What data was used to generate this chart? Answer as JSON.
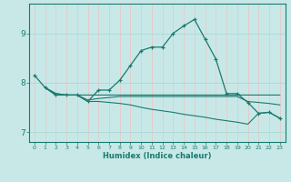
{
  "xlabel": "Humidex (Indice chaleur)",
  "background_color": "#c8e8e8",
  "grid_color_v": "#e8c8c8",
  "grid_color_h": "#a8d8d8",
  "line_color": "#1a7a6e",
  "xlim": [
    -0.5,
    23.5
  ],
  "ylim": [
    6.8,
    9.6
  ],
  "yticks": [
    7,
    8,
    9
  ],
  "xticks": [
    0,
    1,
    2,
    3,
    4,
    5,
    6,
    7,
    8,
    9,
    10,
    11,
    12,
    13,
    14,
    15,
    16,
    17,
    18,
    19,
    20,
    21,
    22,
    23
  ],
  "series1_x": [
    0,
    1,
    2,
    3,
    4,
    5,
    6,
    7,
    8,
    9,
    10,
    11,
    12,
    13,
    14,
    15,
    16,
    17,
    18,
    19,
    20,
    21,
    22,
    23
  ],
  "series1_y": [
    8.15,
    7.9,
    7.75,
    7.75,
    7.75,
    7.62,
    7.85,
    7.85,
    8.05,
    8.35,
    8.65,
    8.72,
    8.72,
    9.0,
    9.15,
    9.28,
    8.88,
    8.48,
    7.78,
    7.78,
    7.6,
    7.38,
    7.4,
    7.28
  ],
  "series2_x": [
    1,
    2,
    3,
    4,
    5,
    6,
    7,
    8,
    9,
    10,
    11,
    12,
    13,
    14,
    15,
    16,
    17,
    18,
    19,
    20,
    21,
    22,
    23
  ],
  "series2_y": [
    7.9,
    7.75,
    7.75,
    7.75,
    7.75,
    7.75,
    7.75,
    7.75,
    7.75,
    7.75,
    7.75,
    7.75,
    7.75,
    7.75,
    7.75,
    7.75,
    7.75,
    7.75,
    7.75,
    7.75,
    7.75,
    7.75,
    7.75
  ],
  "series3_x": [
    1,
    2,
    3,
    4,
    5,
    6,
    7,
    8,
    9,
    10,
    11,
    12,
    13,
    14,
    15,
    16,
    17,
    18,
    19,
    20,
    21,
    22,
    23
  ],
  "series3_y": [
    7.9,
    7.78,
    7.75,
    7.75,
    7.65,
    7.68,
    7.7,
    7.72,
    7.72,
    7.72,
    7.72,
    7.72,
    7.72,
    7.72,
    7.72,
    7.72,
    7.72,
    7.72,
    7.72,
    7.62,
    7.6,
    7.58,
    7.55
  ],
  "series4_x": [
    1,
    2,
    3,
    4,
    5,
    6,
    7,
    8,
    9,
    10,
    11,
    12,
    13,
    14,
    15,
    16,
    17,
    18,
    19,
    20,
    21,
    22,
    23
  ],
  "series4_y": [
    7.9,
    7.78,
    7.75,
    7.75,
    7.62,
    7.62,
    7.6,
    7.58,
    7.55,
    7.5,
    7.46,
    7.43,
    7.4,
    7.36,
    7.33,
    7.3,
    7.26,
    7.23,
    7.2,
    7.16,
    7.38,
    7.4,
    7.28
  ]
}
